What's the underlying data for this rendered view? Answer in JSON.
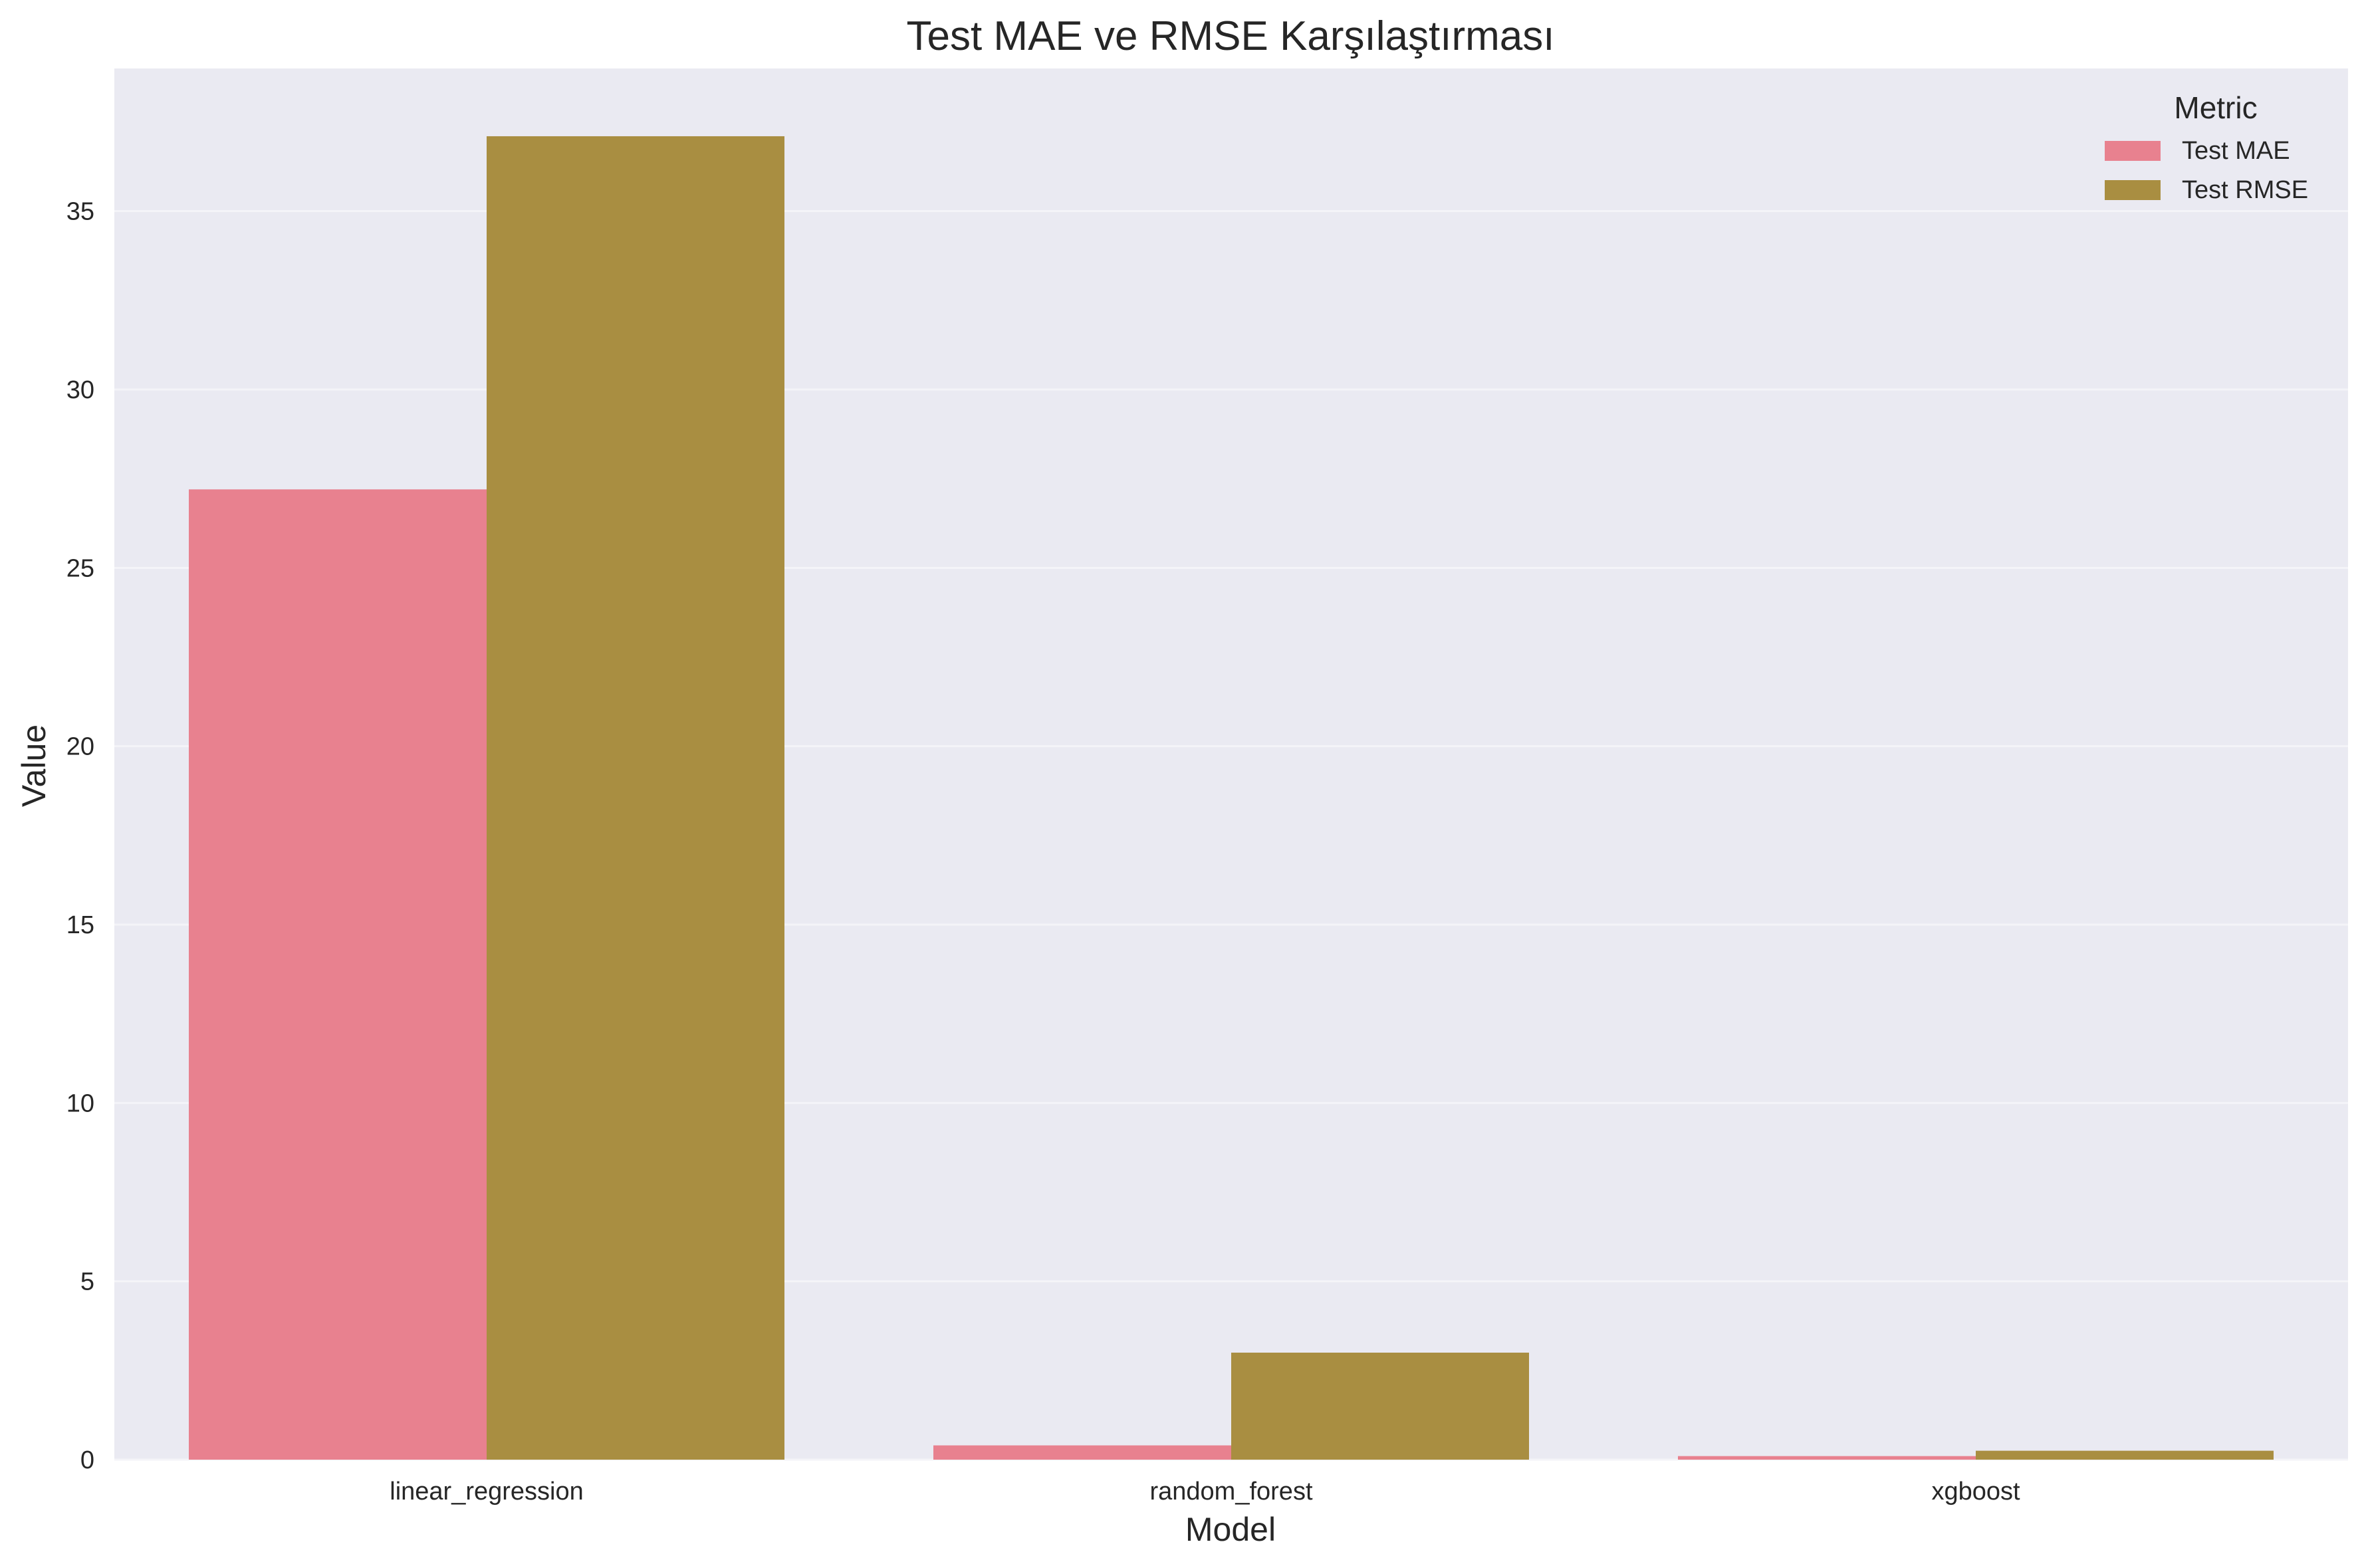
{
  "chart_data": {
    "type": "bar",
    "title": "Test MAE ve RMSE Karşılaştırması",
    "xlabel": "Model",
    "ylabel": "Value",
    "categories": [
      "linear_regression",
      "random_forest",
      "xgboost"
    ],
    "series": [
      {
        "name": "Test MAE",
        "color": "#e8818f",
        "values": [
          27.2,
          0.4,
          0.1
        ]
      },
      {
        "name": "Test RMSE",
        "color": "#a98e41",
        "values": [
          37.1,
          3.0,
          0.25
        ]
      }
    ],
    "ylim": [
      0,
      39
    ],
    "yticks": [
      0,
      5,
      10,
      15,
      20,
      25,
      30,
      35
    ],
    "grid": true,
    "legend": {
      "title": "Metric",
      "placement": "top-right"
    },
    "colors": {
      "background": "#eaeaf2",
      "grid": "#f4f4f8"
    }
  }
}
